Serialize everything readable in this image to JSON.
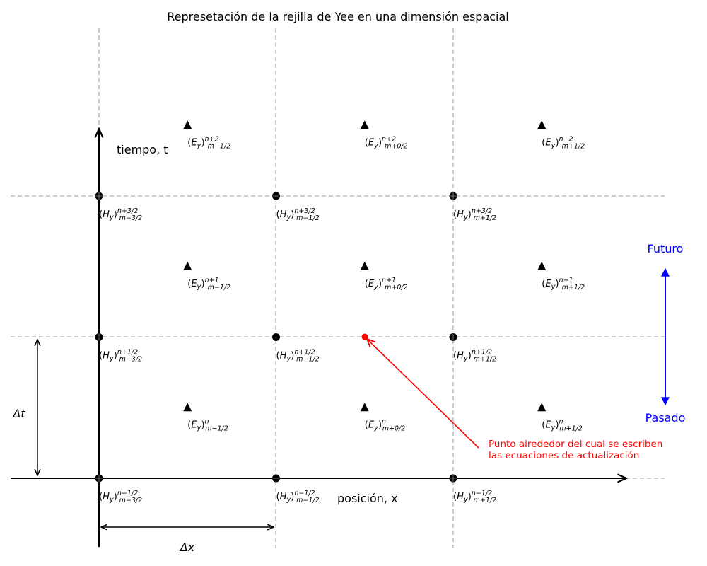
{
  "title": "Represetación de la rejilla de Yee en una dimensión espacial",
  "axes": {
    "x_label": "posición, x",
    "t_label": "tiempo, t",
    "dx_label": "Δx",
    "dt_label": "Δt"
  },
  "time_direction": {
    "future": "Futuro",
    "past": "Pasado",
    "color": "#0000ff"
  },
  "annotation": {
    "line1": "Punto alrededor del cual se escriben",
    "line2": "las ecuaciones de actualización",
    "color": "#ff0000"
  },
  "colors": {
    "grid": "#b0b0b0",
    "marks": "#000000",
    "highlight": "#ff0000"
  },
  "h_nodes": [
    {
      "field": "H",
      "sup": "n−1/2",
      "sub": "m−3/2",
      "col": 0,
      "row": 0
    },
    {
      "field": "H",
      "sup": "n−1/2",
      "sub": "m−1/2",
      "col": 1,
      "row": 0
    },
    {
      "field": "H",
      "sup": "n−1/2",
      "sub": "m+1/2",
      "col": 2,
      "row": 0
    },
    {
      "field": "H",
      "sup": "n+1/2",
      "sub": "m−3/2",
      "col": 0,
      "row": 1
    },
    {
      "field": "H",
      "sup": "n+1/2",
      "sub": "m−1/2",
      "col": 1,
      "row": 1
    },
    {
      "field": "H",
      "sup": "n+1/2",
      "sub": "m+1/2",
      "col": 2,
      "row": 1
    },
    {
      "field": "H",
      "sup": "n+3/2",
      "sub": "m−3/2",
      "col": 0,
      "row": 2
    },
    {
      "field": "H",
      "sup": "n+3/2",
      "sub": "m−1/2",
      "col": 1,
      "row": 2
    },
    {
      "field": "H",
      "sup": "n+3/2",
      "sub": "m+1/2",
      "col": 2,
      "row": 2
    }
  ],
  "e_nodes": [
    {
      "field": "E",
      "sup": "n",
      "sub": "m−1/2",
      "col": 0.5,
      "row": 0.5
    },
    {
      "field": "E",
      "sup": "n",
      "sub": "m+0/2",
      "col": 1.5,
      "row": 0.5
    },
    {
      "field": "E",
      "sup": "n",
      "sub": "m+1/2",
      "col": 2.5,
      "row": 0.5
    },
    {
      "field": "E",
      "sup": "n+1",
      "sub": "m−1/2",
      "col": 0.5,
      "row": 1.5
    },
    {
      "field": "E",
      "sup": "n+1",
      "sub": "m+0/2",
      "col": 1.5,
      "row": 1.5
    },
    {
      "field": "E",
      "sup": "n+1",
      "sub": "m+1/2",
      "col": 2.5,
      "row": 1.5
    },
    {
      "field": "E",
      "sup": "n+2",
      "sub": "m−1/2",
      "col": 0.5,
      "row": 2.5
    },
    {
      "field": "E",
      "sup": "n+2",
      "sub": "m+0/2",
      "col": 1.5,
      "row": 2.5
    },
    {
      "field": "E",
      "sup": "n+2",
      "sub": "m+1/2",
      "col": 2.5,
      "row": 2.5
    }
  ],
  "highlight_point": {
    "col": 1.5,
    "row": 1
  }
}
